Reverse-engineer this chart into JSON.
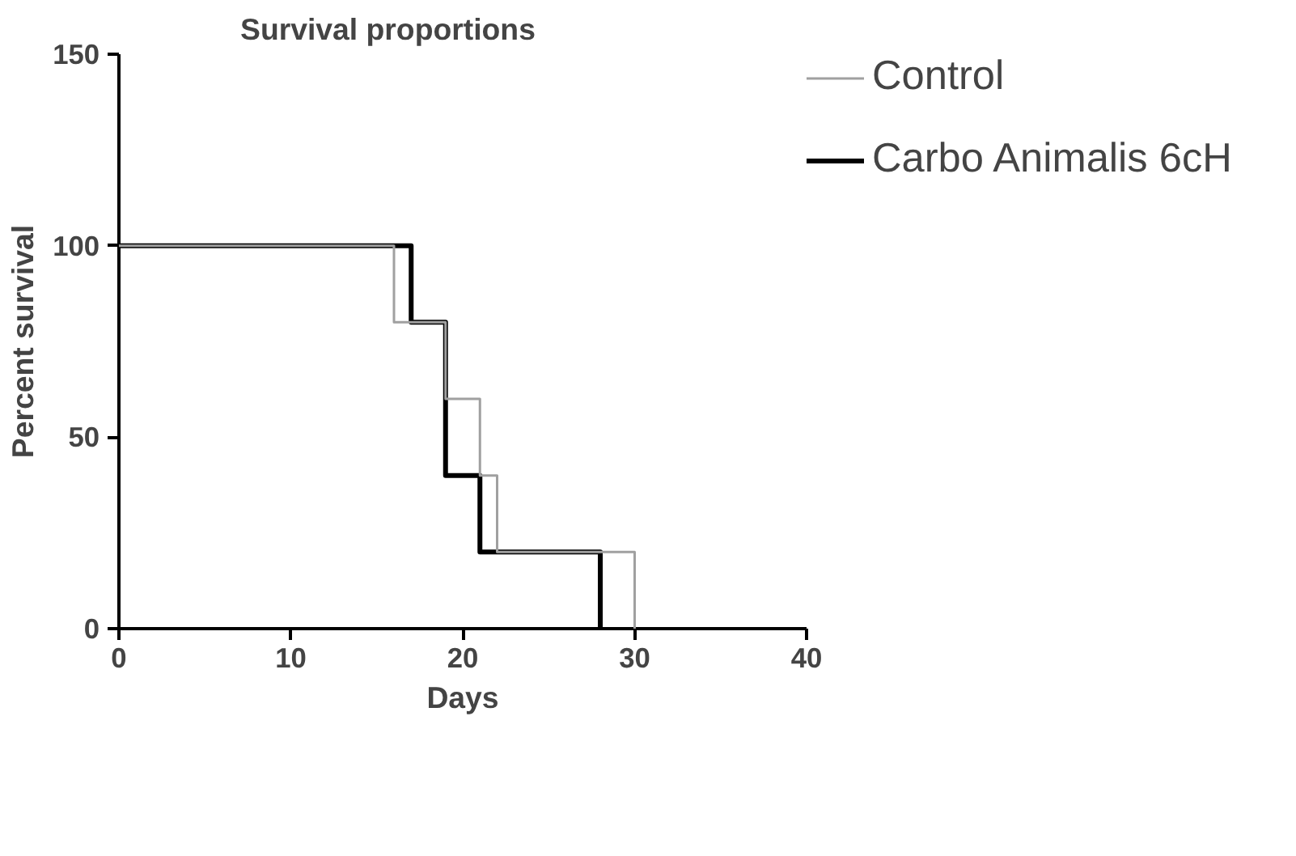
{
  "chart_data": {
    "type": "step",
    "title": "Survival proportions",
    "xlabel": "Days",
    "ylabel": "Percent survival",
    "series": [
      {
        "name": "Control",
        "color": "#a0a0a0",
        "x": [
          0,
          16,
          19,
          21,
          22,
          30
        ],
        "values": [
          100,
          80,
          60,
          40,
          20,
          0
        ]
      },
      {
        "name": "Carbo Animalis 6cH",
        "color": "#000000",
        "x": [
          0,
          17,
          19,
          21,
          28
        ],
        "values": [
          100,
          80,
          40,
          20,
          0
        ]
      }
    ],
    "xlim": [
      0,
      40
    ],
    "xticks": [
      0,
      10,
      20,
      30,
      40
    ],
    "ylim": [
      0,
      150
    ],
    "yticks": [
      0,
      50,
      100,
      150
    ],
    "grid": false,
    "legend": "top right"
  }
}
